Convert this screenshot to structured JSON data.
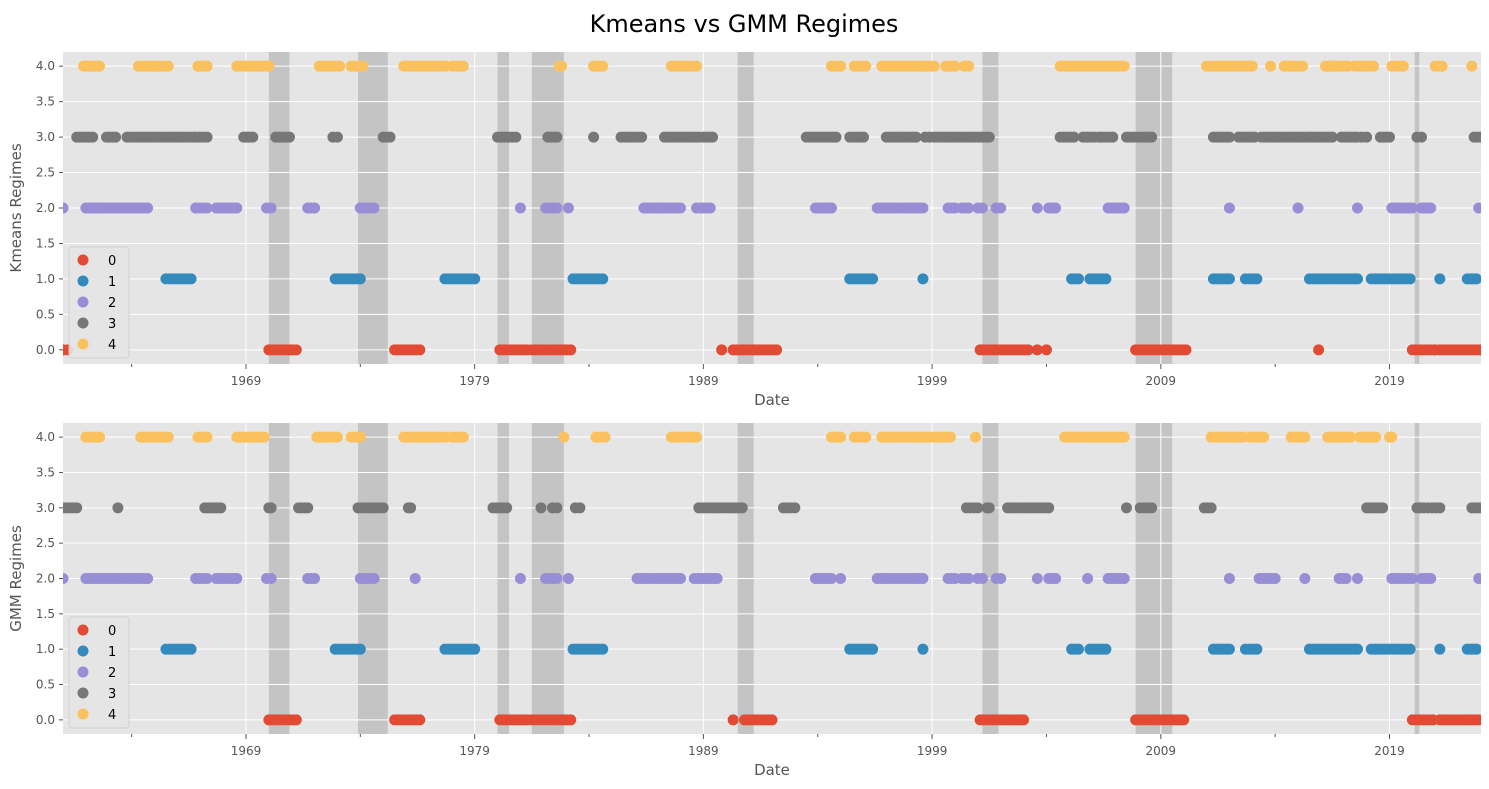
{
  "figure": {
    "title": "Kmeans vs GMM Regimes"
  },
  "style": {
    "panel_background": "#e5e5e5",
    "grid_color": "#ffffff",
    "recession_shade": "#c4c4c4",
    "class_colors": [
      "#e24a33",
      "#348abd",
      "#988ed5",
      "#777777",
      "#fbc15e"
    ]
  },
  "recessions": [
    [
      1970.0,
      1970.9
    ],
    [
      1973.9,
      1975.2
    ],
    [
      1980.0,
      1980.5
    ],
    [
      1981.5,
      1982.9
    ],
    [
      1990.5,
      1991.2
    ],
    [
      2001.2,
      2001.9
    ],
    [
      2007.9,
      2009.5
    ],
    [
      2020.1,
      2020.3
    ]
  ],
  "chart_data": [
    {
      "type": "scatter",
      "xlabel": "Date",
      "ylabel": "Kmeans Regimes",
      "ylim": [
        -0.2,
        4.2
      ],
      "xlim": [
        1961.0,
        2023.0
      ],
      "x_ticks": [
        1969,
        1979,
        1989,
        1999,
        2009,
        2019
      ],
      "x_minor_ticks": [
        1964,
        1974,
        1984,
        1994,
        2004,
        2014
      ],
      "y_ticks": [
        "0.0",
        "0.5",
        "1.0",
        "1.5",
        "2.0",
        "2.5",
        "3.0",
        "3.5",
        "4.0"
      ],
      "grid": true,
      "legend": {
        "location": "lower-left",
        "entries": [
          "0",
          "1",
          "2",
          "3",
          "4"
        ]
      },
      "series": [
        {
          "name": "0",
          "y": 0,
          "ranges": [
            [
              1961.0,
              1961.2
            ],
            [
              1970.0,
              1971.2
            ],
            [
              1975.5,
              1976.6
            ],
            [
              1980.1,
              1981.3
            ],
            [
              1981.5,
              1983.2
            ],
            [
              1989.8,
              1989.8
            ],
            [
              1990.3,
              1992.2
            ],
            [
              2001.1,
              2003.2
            ],
            [
              2003.6,
              2003.6
            ],
            [
              2004.0,
              2004.0
            ],
            [
              2007.9,
              2010.1
            ],
            [
              2015.9,
              2015.9
            ],
            [
              2020.0,
              2021.0
            ],
            [
              2021.2,
              2023.0
            ]
          ]
        },
        {
          "name": "1",
          "y": 1,
          "ranges": [
            [
              1965.5,
              1966.6
            ],
            [
              1972.9,
              1974.0
            ],
            [
              1977.7,
              1979.0
            ],
            [
              1983.3,
              1984.6
            ],
            [
              1995.4,
              1996.4
            ],
            [
              1998.6,
              1998.6
            ],
            [
              2005.1,
              2005.4
            ],
            [
              2005.9,
              2006.6
            ],
            [
              2011.3,
              2012.0
            ],
            [
              2012.7,
              2013.2
            ],
            [
              2015.5,
              2017.6
            ],
            [
              2018.2,
              2019.9
            ],
            [
              2021.2,
              2021.2
            ],
            [
              2022.4,
              2022.8
            ]
          ]
        },
        {
          "name": "2",
          "y": 2,
          "ranges": [
            [
              1961.0,
              1961.0
            ],
            [
              1962.0,
              1962.7
            ],
            [
              1962.8,
              1964.7
            ],
            [
              1966.8,
              1967.3
            ],
            [
              1967.7,
              1968.6
            ],
            [
              1969.9,
              1970.1
            ],
            [
              1971.7,
              1972.0
            ],
            [
              1974.0,
              1974.6
            ],
            [
              1981.0,
              1981.0
            ],
            [
              1982.1,
              1982.6
            ],
            [
              1983.1,
              1983.1
            ],
            [
              1986.4,
              1988.0
            ],
            [
              1988.7,
              1989.3
            ],
            [
              1993.9,
              1994.6
            ],
            [
              1996.6,
              1998.6
            ],
            [
              1999.7,
              2000.0
            ],
            [
              2000.3,
              2000.6
            ],
            [
              2001.0,
              2001.2
            ],
            [
              2001.8,
              2002.0
            ],
            [
              2003.6,
              2003.6
            ],
            [
              2004.1,
              2004.4
            ],
            [
              2006.7,
              2007.4
            ],
            [
              2012.0,
              2012.0
            ],
            [
              2015.0,
              2015.0
            ],
            [
              2017.6,
              2017.6
            ],
            [
              2019.1,
              2020.0
            ],
            [
              2020.4,
              2020.8
            ],
            [
              2022.9,
              2022.9
            ]
          ]
        },
        {
          "name": "3",
          "y": 3,
          "ranges": [
            [
              1961.6,
              1962.3
            ],
            [
              1962.9,
              1963.3
            ],
            [
              1963.8,
              1966.7
            ],
            [
              1966.8,
              1967.3
            ],
            [
              1968.9,
              1969.3
            ],
            [
              1970.3,
              1970.9
            ],
            [
              1972.8,
              1973.0
            ],
            [
              1975.0,
              1975.3
            ],
            [
              1980.0,
              1980.8
            ],
            [
              1982.2,
              1982.6
            ],
            [
              1984.2,
              1984.2
            ],
            [
              1985.4,
              1986.3
            ],
            [
              1987.3,
              1988.8
            ],
            [
              1989.0,
              1989.4
            ],
            [
              1993.5,
              1994.8
            ],
            [
              1995.4,
              1996.0
            ],
            [
              1997.0,
              1998.3
            ],
            [
              1998.7,
              1998.9
            ],
            [
              1999.1,
              2001.5
            ],
            [
              2004.6,
              2005.2
            ],
            [
              2005.6,
              2006.1
            ],
            [
              2006.3,
              2006.9
            ],
            [
              2007.5,
              2008.6
            ],
            [
              2011.3,
              2012.0
            ],
            [
              2012.4,
              2013.1
            ],
            [
              2013.4,
              2015.5
            ],
            [
              2015.6,
              2016.5
            ],
            [
              2016.9,
              2017.6
            ],
            [
              2017.8,
              2018.0
            ],
            [
              2018.6,
              2019.0
            ],
            [
              2020.2,
              2020.4
            ],
            [
              2022.7,
              2023.0
            ]
          ]
        },
        {
          "name": "4",
          "y": 4,
          "ranges": [
            [
              1961.9,
              1962.6
            ],
            [
              1964.3,
              1965.6
            ],
            [
              1966.9,
              1967.3
            ],
            [
              1968.6,
              1970.0
            ],
            [
              1972.2,
              1973.1
            ],
            [
              1973.6,
              1974.1
            ],
            [
              1975.9,
              1977.7
            ],
            [
              1978.0,
              1978.5
            ],
            [
              1982.7,
              1982.8
            ],
            [
              1984.2,
              1984.6
            ],
            [
              1987.6,
              1988.7
            ],
            [
              1994.6,
              1995.0
            ],
            [
              1995.6,
              1996.1
            ],
            [
              1996.8,
              1999.1
            ],
            [
              1999.6,
              2000.0
            ],
            [
              2000.4,
              2000.6
            ],
            [
              2004.6,
              2007.4
            ],
            [
              2011.0,
              2013.0
            ],
            [
              2013.8,
              2013.8
            ],
            [
              2014.4,
              2015.2
            ],
            [
              2016.2,
              2017.2
            ],
            [
              2017.5,
              2018.3
            ],
            [
              2019.1,
              2019.6
            ],
            [
              2021.0,
              2021.3
            ],
            [
              2022.6,
              2022.6
            ]
          ]
        }
      ]
    },
    {
      "type": "scatter",
      "xlabel": "Date",
      "ylabel": "GMM Regimes",
      "ylim": [
        -0.2,
        4.2
      ],
      "xlim": [
        1961.0,
        2023.0
      ],
      "x_ticks": [
        1969,
        1979,
        1989,
        1999,
        2009,
        2019
      ],
      "x_minor_ticks": [
        1964,
        1974,
        1984,
        1994,
        2004,
        2014
      ],
      "y_ticks": [
        "0.0",
        "0.5",
        "1.0",
        "1.5",
        "2.0",
        "2.5",
        "3.0",
        "3.5",
        "4.0"
      ],
      "grid": true,
      "legend": {
        "location": "lower-left",
        "entries": [
          "0",
          "1",
          "2",
          "3",
          "4"
        ]
      },
      "series": [
        {
          "name": "0",
          "y": 0,
          "ranges": [
            [
              1970.0,
              1971.2
            ],
            [
              1975.5,
              1976.6
            ],
            [
              1980.1,
              1981.3
            ],
            [
              1981.5,
              1983.2
            ],
            [
              1990.3,
              1990.3
            ],
            [
              1990.8,
              1992.0
            ],
            [
              2001.1,
              2003.0
            ],
            [
              2007.9,
              2010.0
            ],
            [
              2020.0,
              2020.9
            ],
            [
              2021.2,
              2022.9
            ]
          ]
        },
        {
          "name": "1",
          "y": 1,
          "ranges": [
            [
              1965.5,
              1966.6
            ],
            [
              1972.9,
              1974.0
            ],
            [
              1977.7,
              1979.0
            ],
            [
              1983.3,
              1984.6
            ],
            [
              1995.4,
              1996.4
            ],
            [
              1998.6,
              1998.6
            ],
            [
              2005.1,
              2005.4
            ],
            [
              2005.9,
              2006.6
            ],
            [
              2011.3,
              2012.0
            ],
            [
              2012.7,
              2013.2
            ],
            [
              2015.5,
              2017.6
            ],
            [
              2018.2,
              2019.9
            ],
            [
              2021.2,
              2021.2
            ],
            [
              2022.4,
              2022.8
            ]
          ]
        },
        {
          "name": "2",
          "y": 2,
          "ranges": [
            [
              1961.0,
              1961.0
            ],
            [
              1962.0,
              1962.7
            ],
            [
              1962.8,
              1964.7
            ],
            [
              1966.8,
              1967.3
            ],
            [
              1967.7,
              1968.6
            ],
            [
              1969.9,
              1970.1
            ],
            [
              1971.7,
              1972.0
            ],
            [
              1974.0,
              1974.6
            ],
            [
              1976.4,
              1976.4
            ],
            [
              1981.0,
              1981.0
            ],
            [
              1982.1,
              1982.6
            ],
            [
              1983.1,
              1983.1
            ],
            [
              1986.1,
              1988.0
            ],
            [
              1988.6,
              1989.6
            ],
            [
              1993.9,
              1994.6
            ],
            [
              1995.0,
              1995.0
            ],
            [
              1996.6,
              1998.6
            ],
            [
              1999.7,
              2000.0
            ],
            [
              2000.3,
              2000.6
            ],
            [
              2001.0,
              2001.2
            ],
            [
              2001.8,
              2002.0
            ],
            [
              2003.6,
              2003.6
            ],
            [
              2004.1,
              2004.4
            ],
            [
              2005.8,
              2005.8
            ],
            [
              2006.7,
              2007.4
            ],
            [
              2012.0,
              2012.0
            ],
            [
              2013.3,
              2014.0
            ],
            [
              2015.3,
              2015.3
            ],
            [
              2016.8,
              2017.1
            ],
            [
              2017.6,
              2017.6
            ],
            [
              2019.1,
              2020.0
            ],
            [
              2020.4,
              2020.8
            ],
            [
              2022.9,
              2022.9
            ]
          ]
        },
        {
          "name": "3",
          "y": 3,
          "ranges": [
            [
              1961.0,
              1961.6
            ],
            [
              1963.4,
              1963.4
            ],
            [
              1967.2,
              1967.9
            ],
            [
              1970.0,
              1970.1
            ],
            [
              1971.3,
              1971.7
            ],
            [
              1973.9,
              1975.0
            ],
            [
              1976.1,
              1976.2
            ],
            [
              1979.8,
              1980.4
            ],
            [
              1981.9,
              1981.9
            ],
            [
              1982.4,
              1982.6
            ],
            [
              1983.4,
              1983.6
            ],
            [
              1988.8,
              1990.7
            ],
            [
              1992.5,
              1993.0
            ],
            [
              2000.5,
              2001.0
            ],
            [
              2001.4,
              2001.5
            ],
            [
              2002.3,
              2004.1
            ],
            [
              2007.5,
              2007.5
            ],
            [
              2008.1,
              2008.6
            ],
            [
              2010.9,
              2011.2
            ],
            [
              2018.0,
              2018.7
            ],
            [
              2020.2,
              2020.5
            ],
            [
              2020.7,
              2021.2
            ],
            [
              2022.6,
              2023.0
            ]
          ]
        },
        {
          "name": "4",
          "y": 4,
          "ranges": [
            [
              1962.0,
              1962.6
            ],
            [
              1964.4,
              1965.6
            ],
            [
              1966.9,
              1967.3
            ],
            [
              1968.6,
              1969.8
            ],
            [
              1972.1,
              1973.0
            ],
            [
              1973.6,
              1974.0
            ],
            [
              1975.9,
              1977.7
            ],
            [
              1978.0,
              1978.5
            ],
            [
              1982.9,
              1982.9
            ],
            [
              1984.3,
              1984.7
            ],
            [
              1987.6,
              1988.7
            ],
            [
              1994.6,
              1995.0
            ],
            [
              1995.6,
              1996.1
            ],
            [
              1996.8,
              1999.8
            ],
            [
              2000.9,
              2000.9
            ],
            [
              2004.8,
              2007.4
            ],
            [
              2011.2,
              2012.6
            ],
            [
              2012.9,
              2013.5
            ],
            [
              2014.7,
              2015.3
            ],
            [
              2016.3,
              2017.3
            ],
            [
              2017.7,
              2018.4
            ],
            [
              2019.0,
              2019.1
            ]
          ]
        }
      ]
    }
  ]
}
